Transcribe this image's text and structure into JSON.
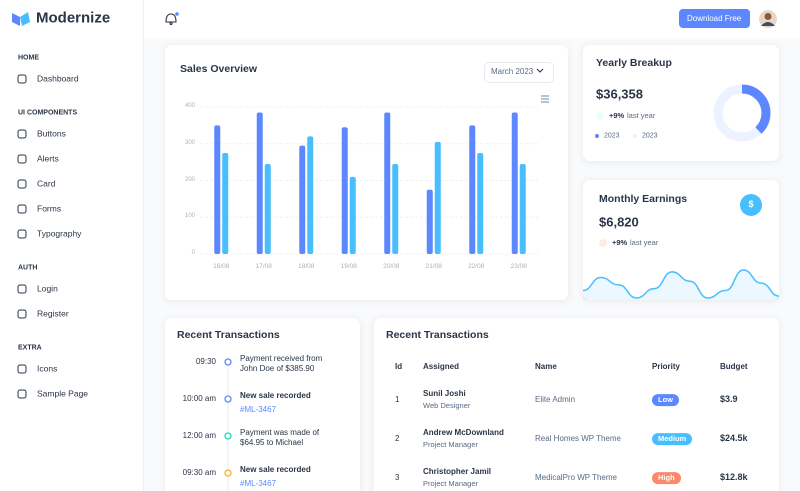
{
  "brand": "Modernize",
  "header": {
    "button": "Download Free"
  },
  "sidebar": {
    "sections": [
      {
        "title": "HOME",
        "items": [
          "Dashboard"
        ]
      },
      {
        "title": "UI COMPONENTS",
        "items": [
          "Buttons",
          "Alerts",
          "Card",
          "Forms",
          "Typography"
        ]
      },
      {
        "title": "AUTH",
        "items": [
          "Login",
          "Register"
        ]
      },
      {
        "title": "EXTRA",
        "items": [
          "Icons",
          "Sample Page"
        ]
      }
    ]
  },
  "sales": {
    "select": "March 2023"
  },
  "chart_data": [
    {
      "type": "bar",
      "title": "Sales Overview",
      "categories": [
        "16/08",
        "17/08",
        "18/08",
        "19/08",
        "20/08",
        "21/08",
        "22/08",
        "23/08"
      ],
      "series": [
        {
          "color": "#5D87FF",
          "values": [
            350,
            385,
            295,
            345,
            385,
            175,
            350,
            385
          ]
        },
        {
          "color": "#49BEFF",
          "values": [
            275,
            245,
            320,
            210,
            245,
            305,
            275,
            245
          ]
        }
      ],
      "ylim": [
        0,
        400
      ],
      "yticks": [
        0,
        100,
        200,
        300,
        400
      ],
      "grid": true
    },
    {
      "type": "donut",
      "categories": [
        "2023",
        "2023"
      ],
      "values": [
        38,
        62
      ],
      "colors": [
        "#5D87FF",
        "#ECF2FF"
      ]
    },
    {
      "type": "area",
      "values": [
        20,
        34,
        26,
        12,
        22,
        40,
        30,
        12,
        20,
        42,
        28,
        14
      ],
      "color": "#49BEFF"
    }
  ],
  "yearly": {
    "title": "Yearly Breakup",
    "amount": "$36,358",
    "change": "+9%",
    "note": "last year"
  },
  "monthly": {
    "title": "Monthly Earnings",
    "amount": "$6,820",
    "change": "+9%",
    "note": "last year",
    "icon": "$"
  },
  "timeline": {
    "title": "Recent Transactions",
    "items": [
      {
        "time": "09:30",
        "text": "Payment received from John Doe of $385.90",
        "color": "#5D87FF"
      },
      {
        "time": "10:00 am",
        "text": "New sale recorded",
        "link": "#ML-3467",
        "color": "#5D87FF"
      },
      {
        "time": "12:00 am",
        "text": "Payment was made of $64.95 to Michael",
        "color": "#13DEB9"
      },
      {
        "time": "09:30 am",
        "text": "New sale recorded",
        "link": "#ML-3467",
        "color": "#FFAE1F"
      }
    ]
  },
  "table": {
    "title": "Recent Transactions",
    "columns": [
      "Id",
      "Assigned",
      "Name",
      "Priority",
      "Budget"
    ],
    "rows": [
      {
        "id": "1",
        "assigned": "Sunil Joshi",
        "role": "Web Designer",
        "name": "Elite Admin",
        "priority": "Low",
        "color": "#5D87FF",
        "budget": "$3.9"
      },
      {
        "id": "2",
        "assigned": "Andrew McDownland",
        "role": "Project Manager",
        "name": "Real Homes WP Theme",
        "priority": "Medium",
        "color": "#49BEFF",
        "budget": "$24.5k"
      },
      {
        "id": "3",
        "assigned": "Christopher Jamil",
        "role": "Project Manager",
        "name": "MedicalPro WP Theme",
        "priority": "High",
        "color": "#FA896B",
        "budget": "$12.8k"
      }
    ]
  }
}
